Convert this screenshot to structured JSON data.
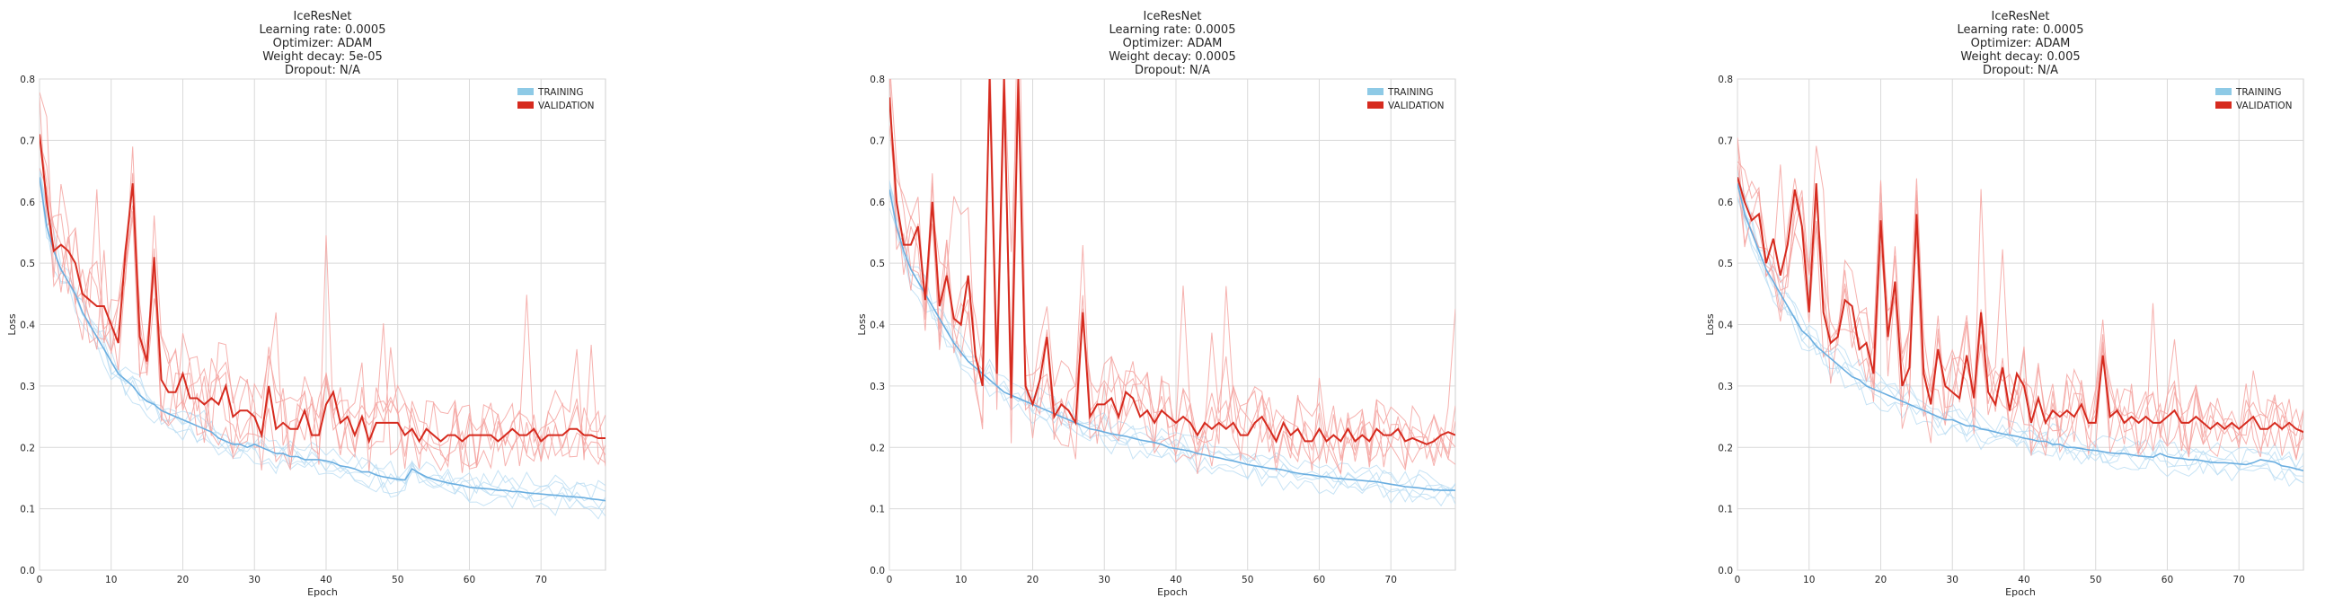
{
  "chart_data": [
    {
      "type": "line",
      "title_lines": [
        "IceResNet",
        "Learning rate: 0.0005",
        "Optimizer: ADAM",
        "Weight decay: 5e-05",
        "Dropout: N/A"
      ],
      "xlabel": "Epoch",
      "ylabel": "Loss",
      "xlim": [
        0,
        79
      ],
      "ylim": [
        0,
        0.8
      ],
      "x_ticks": [
        "0",
        "10",
        "20",
        "30",
        "40",
        "50",
        "60",
        "70"
      ],
      "y_ticks": [
        "0.0",
        "0.1",
        "0.2",
        "0.3",
        "0.4",
        "0.5",
        "0.6",
        "0.7",
        "0.8"
      ],
      "grid": true,
      "legend": {
        "position": "top-right",
        "entries": [
          {
            "label": "TRAINING",
            "color": "#8ecae6"
          },
          {
            "label": "VALIDATION",
            "color": "#d62b1f"
          }
        ]
      },
      "series": [
        {
          "name": "TRAINING",
          "color": "#6aaee0",
          "values": [
            0.64,
            0.56,
            0.52,
            0.49,
            0.47,
            0.45,
            0.42,
            0.4,
            0.38,
            0.36,
            0.34,
            0.32,
            0.31,
            0.3,
            0.285,
            0.275,
            0.27,
            0.26,
            0.255,
            0.25,
            0.245,
            0.24,
            0.235,
            0.23,
            0.225,
            0.215,
            0.21,
            0.205,
            0.205,
            0.2,
            0.205,
            0.2,
            0.195,
            0.19,
            0.19,
            0.185,
            0.185,
            0.18,
            0.18,
            0.18,
            0.178,
            0.175,
            0.17,
            0.168,
            0.165,
            0.16,
            0.16,
            0.155,
            0.152,
            0.15,
            0.148,
            0.147,
            0.165,
            0.158,
            0.152,
            0.148,
            0.145,
            0.142,
            0.14,
            0.138,
            0.135,
            0.134,
            0.133,
            0.132,
            0.13,
            0.13,
            0.128,
            0.128,
            0.126,
            0.125,
            0.124,
            0.123,
            0.122,
            0.121,
            0.12,
            0.119,
            0.118,
            0.116,
            0.115,
            0.113
          ]
        },
        {
          "name": "VALIDATION",
          "color": "#d62b1f",
          "values": [
            0.71,
            0.6,
            0.52,
            0.53,
            0.52,
            0.5,
            0.45,
            0.44,
            0.43,
            0.43,
            0.4,
            0.37,
            0.52,
            0.63,
            0.38,
            0.34,
            0.51,
            0.31,
            0.29,
            0.29,
            0.32,
            0.28,
            0.28,
            0.27,
            0.28,
            0.27,
            0.3,
            0.25,
            0.26,
            0.26,
            0.25,
            0.22,
            0.3,
            0.23,
            0.24,
            0.23,
            0.23,
            0.26,
            0.22,
            0.22,
            0.27,
            0.29,
            0.24,
            0.25,
            0.22,
            0.25,
            0.21,
            0.24,
            0.24,
            0.24,
            0.24,
            0.22,
            0.23,
            0.21,
            0.23,
            0.22,
            0.21,
            0.22,
            0.22,
            0.21,
            0.22,
            0.22,
            0.22,
            0.22,
            0.21,
            0.22,
            0.23,
            0.22,
            0.22,
            0.23,
            0.21,
            0.22,
            0.22,
            0.22,
            0.23,
            0.23,
            0.22,
            0.22,
            0.215,
            0.215
          ]
        }
      ]
    },
    {
      "type": "line",
      "title_lines": [
        "IceResNet",
        "Learning rate: 0.0005",
        "Optimizer: ADAM",
        "Weight decay: 0.0005",
        "Dropout: N/A"
      ],
      "xlabel": "Epoch",
      "ylabel": "Loss",
      "xlim": [
        0,
        79
      ],
      "ylim": [
        0,
        0.8
      ],
      "x_ticks": [
        "0",
        "10",
        "20",
        "30",
        "40",
        "50",
        "60",
        "70"
      ],
      "y_ticks": [
        "0.0",
        "0.1",
        "0.2",
        "0.3",
        "0.4",
        "0.5",
        "0.6",
        "0.7",
        "0.8"
      ],
      "grid": true,
      "legend": {
        "position": "top-right",
        "entries": [
          {
            "label": "TRAINING",
            "color": "#8ecae6"
          },
          {
            "label": "VALIDATION",
            "color": "#d62b1f"
          }
        ]
      },
      "series": [
        {
          "name": "TRAINING",
          "color": "#6aaee0",
          "values": [
            0.62,
            0.56,
            0.52,
            0.49,
            0.47,
            0.45,
            0.43,
            0.41,
            0.39,
            0.37,
            0.355,
            0.34,
            0.33,
            0.32,
            0.31,
            0.3,
            0.29,
            0.285,
            0.28,
            0.275,
            0.27,
            0.265,
            0.26,
            0.255,
            0.25,
            0.245,
            0.24,
            0.235,
            0.23,
            0.228,
            0.225,
            0.222,
            0.22,
            0.218,
            0.215,
            0.212,
            0.21,
            0.208,
            0.205,
            0.2,
            0.198,
            0.196,
            0.194,
            0.19,
            0.188,
            0.185,
            0.183,
            0.18,
            0.178,
            0.175,
            0.172,
            0.17,
            0.168,
            0.166,
            0.165,
            0.163,
            0.16,
            0.158,
            0.156,
            0.155,
            0.153,
            0.152,
            0.15,
            0.149,
            0.148,
            0.147,
            0.146,
            0.145,
            0.144,
            0.142,
            0.14,
            0.138,
            0.136,
            0.135,
            0.134,
            0.132,
            0.131,
            0.13,
            0.13,
            0.13
          ]
        },
        {
          "name": "VALIDATION",
          "color": "#d62b1f",
          "values": [
            0.77,
            0.6,
            0.53,
            0.53,
            0.56,
            0.44,
            0.6,
            0.43,
            0.48,
            0.41,
            0.4,
            0.48,
            0.35,
            0.3,
            0.8,
            0.32,
            0.8,
            0.28,
            0.8,
            0.3,
            0.27,
            0.31,
            0.38,
            0.25,
            0.27,
            0.26,
            0.24,
            0.42,
            0.25,
            0.27,
            0.27,
            0.28,
            0.25,
            0.29,
            0.28,
            0.25,
            0.26,
            0.24,
            0.26,
            0.25,
            0.24,
            0.25,
            0.24,
            0.22,
            0.24,
            0.23,
            0.24,
            0.23,
            0.24,
            0.22,
            0.22,
            0.24,
            0.25,
            0.23,
            0.21,
            0.24,
            0.22,
            0.23,
            0.21,
            0.21,
            0.23,
            0.21,
            0.22,
            0.21,
            0.23,
            0.21,
            0.22,
            0.21,
            0.23,
            0.22,
            0.22,
            0.23,
            0.21,
            0.215,
            0.21,
            0.205,
            0.21,
            0.22,
            0.225,
            0.22
          ]
        }
      ]
    },
    {
      "type": "line",
      "title_lines": [
        "IceResNet",
        "Learning rate: 0.0005",
        "Optimizer: ADAM",
        "Weight decay: 0.005",
        "Dropout: N/A"
      ],
      "xlabel": "Epoch",
      "ylabel": "Loss",
      "xlim": [
        0,
        79
      ],
      "ylim": [
        0,
        0.8
      ],
      "x_ticks": [
        "0",
        "10",
        "20",
        "30",
        "40",
        "50",
        "60",
        "70"
      ],
      "y_ticks": [
        "0.0",
        "0.1",
        "0.2",
        "0.3",
        "0.4",
        "0.5",
        "0.6",
        "0.7",
        "0.8"
      ],
      "grid": true,
      "legend": {
        "position": "top-right",
        "entries": [
          {
            "label": "TRAINING",
            "color": "#8ecae6"
          },
          {
            "label": "VALIDATION",
            "color": "#d62b1f"
          }
        ]
      },
      "series": [
        {
          "name": "TRAINING",
          "color": "#6aaee0",
          "values": [
            0.63,
            0.58,
            0.55,
            0.52,
            0.49,
            0.47,
            0.45,
            0.43,
            0.41,
            0.39,
            0.38,
            0.365,
            0.355,
            0.345,
            0.335,
            0.325,
            0.315,
            0.31,
            0.3,
            0.295,
            0.29,
            0.285,
            0.28,
            0.275,
            0.27,
            0.265,
            0.26,
            0.255,
            0.25,
            0.245,
            0.245,
            0.24,
            0.235,
            0.235,
            0.23,
            0.228,
            0.225,
            0.222,
            0.22,
            0.218,
            0.215,
            0.213,
            0.21,
            0.21,
            0.205,
            0.205,
            0.2,
            0.2,
            0.198,
            0.196,
            0.195,
            0.193,
            0.191,
            0.19,
            0.19,
            0.188,
            0.186,
            0.185,
            0.184,
            0.19,
            0.185,
            0.183,
            0.182,
            0.18,
            0.18,
            0.178,
            0.176,
            0.175,
            0.175,
            0.174,
            0.173,
            0.172,
            0.175,
            0.18,
            0.178,
            0.176,
            0.17,
            0.168,
            0.165,
            0.162
          ]
        },
        {
          "name": "VALIDATION",
          "color": "#d62b1f",
          "values": [
            0.64,
            0.6,
            0.57,
            0.58,
            0.5,
            0.54,
            0.48,
            0.53,
            0.62,
            0.56,
            0.42,
            0.63,
            0.42,
            0.37,
            0.38,
            0.44,
            0.43,
            0.36,
            0.37,
            0.32,
            0.57,
            0.38,
            0.47,
            0.3,
            0.33,
            0.58,
            0.32,
            0.27,
            0.36,
            0.3,
            0.29,
            0.28,
            0.35,
            0.28,
            0.42,
            0.29,
            0.27,
            0.33,
            0.26,
            0.32,
            0.3,
            0.24,
            0.28,
            0.24,
            0.26,
            0.25,
            0.26,
            0.25,
            0.27,
            0.24,
            0.24,
            0.35,
            0.25,
            0.26,
            0.24,
            0.25,
            0.24,
            0.25,
            0.24,
            0.24,
            0.25,
            0.26,
            0.24,
            0.24,
            0.25,
            0.24,
            0.23,
            0.24,
            0.23,
            0.24,
            0.23,
            0.24,
            0.25,
            0.23,
            0.23,
            0.24,
            0.23,
            0.24,
            0.23,
            0.225
          ]
        }
      ]
    }
  ]
}
